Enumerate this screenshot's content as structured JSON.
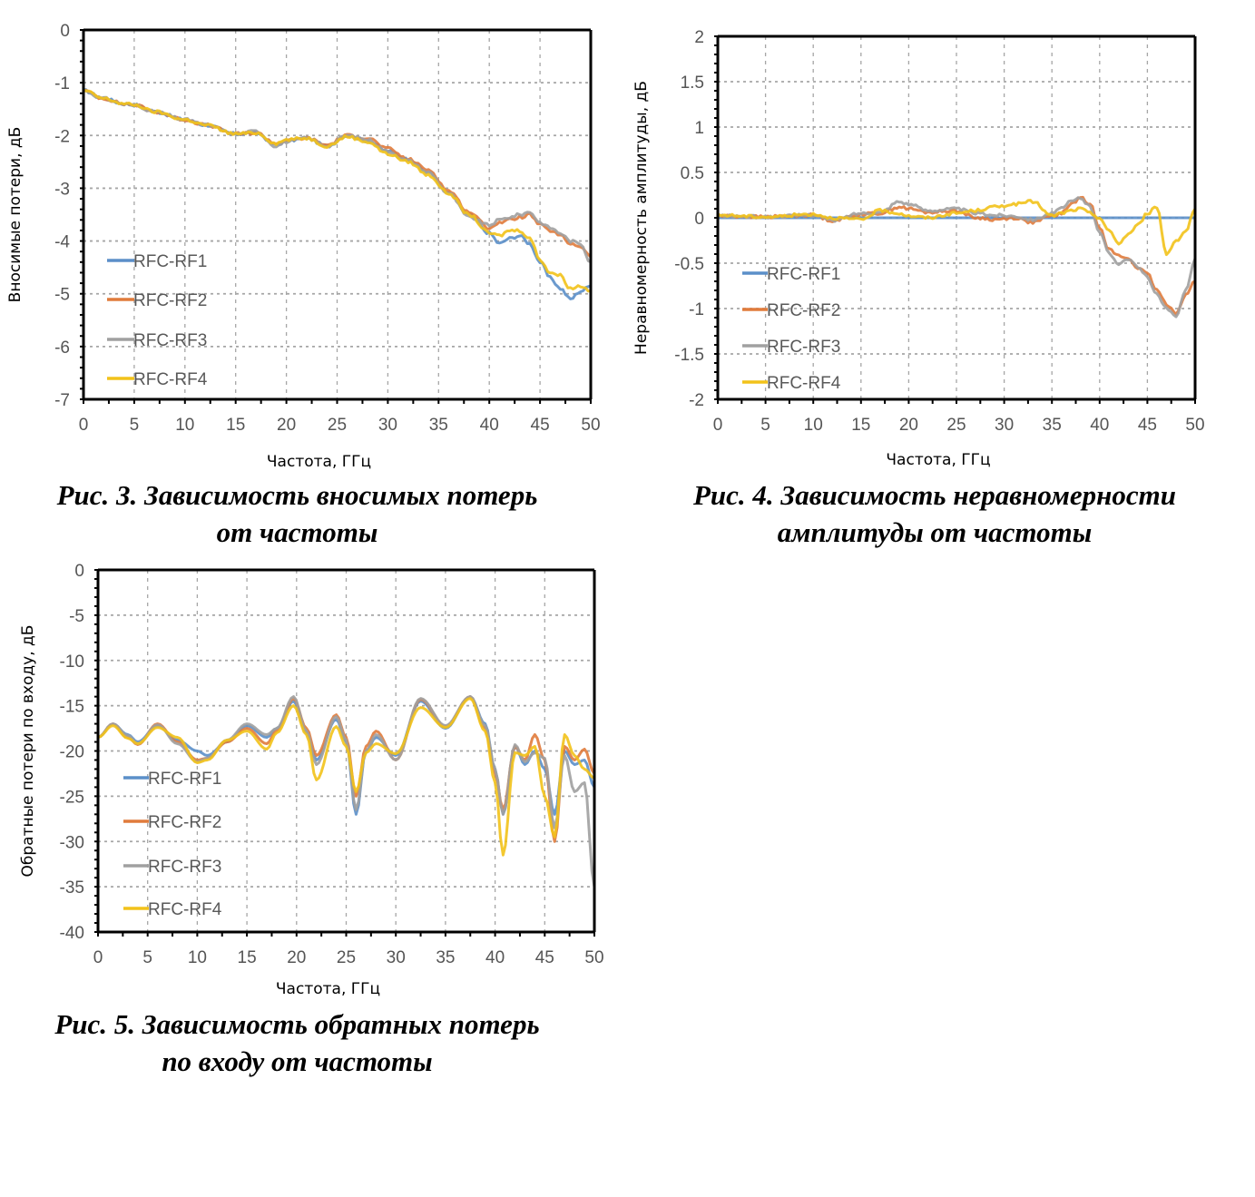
{
  "colors": {
    "RFC-RF1": "#5b8fc9",
    "RFC-RF2": "#e07b3c",
    "RFC-RF3": "#a0a0a0",
    "RFC-RF4": "#f2c21a",
    "grid": "#a6a6a6",
    "axis": "#000000"
  },
  "captions": {
    "fig3_line1": "Рис. 3. Зависимость вносимых потерь",
    "fig3_line2": "от частоты",
    "fig4_line1": "Рис. 4. Зависимость неравномерности",
    "fig4_line2": "амплитуды от частоты",
    "fig5_line1": "Рис. 5. Зависимость обратных потерь",
    "fig5_line2": "по входу от частоты"
  },
  "chart_data": [
    {
      "id": "fig3",
      "type": "line",
      "title": "",
      "xlabel": "Частота, ГГц",
      "ylabel": "Вносимые потери, дБ",
      "xlim": [
        0,
        50
      ],
      "ylim": [
        -7,
        0
      ],
      "xticks": [
        0,
        5,
        10,
        15,
        20,
        25,
        30,
        35,
        40,
        45,
        50
      ],
      "yticks": [
        0,
        -1,
        -2,
        -3,
        -4,
        -5,
        -6,
        -7
      ],
      "ytick_labels": [
        "0",
        "-1",
        "-2",
        "-3",
        "-4",
        "-5",
        "-6",
        "-7"
      ],
      "grid": true,
      "legend": "bottom-left",
      "x": [
        0,
        2,
        4,
        5,
        7,
        10,
        12,
        15,
        17,
        19,
        20,
        22,
        24,
        26,
        28,
        30,
        32,
        34,
        36,
        38,
        40,
        41,
        42,
        43,
        44,
        45,
        46,
        47,
        48,
        49,
        50
      ],
      "series": [
        {
          "name": "RFC-RF1",
          "values": [
            -1.15,
            -1.3,
            -1.4,
            -1.42,
            -1.55,
            -1.7,
            -1.8,
            -1.97,
            -1.95,
            -2.18,
            -2.1,
            -2.05,
            -2.2,
            -2.0,
            -2.1,
            -2.3,
            -2.45,
            -2.7,
            -3.1,
            -3.5,
            -3.85,
            -4.05,
            -3.95,
            -3.9,
            -4.05,
            -4.4,
            -4.7,
            -4.9,
            -5.1,
            -4.95,
            -4.85
          ]
        },
        {
          "name": "RFC-RF2",
          "values": [
            -1.15,
            -1.3,
            -1.4,
            -1.42,
            -1.55,
            -1.7,
            -1.8,
            -1.97,
            -1.95,
            -2.15,
            -2.1,
            -2.05,
            -2.18,
            -2.0,
            -2.05,
            -2.25,
            -2.45,
            -2.65,
            -3.05,
            -3.45,
            -3.75,
            -3.65,
            -3.6,
            -3.55,
            -3.5,
            -3.7,
            -3.8,
            -3.9,
            -4.05,
            -4.1,
            -4.3
          ]
        },
        {
          "name": "RFC-RF3",
          "values": [
            -1.15,
            -1.3,
            -1.4,
            -1.42,
            -1.55,
            -1.7,
            -1.8,
            -1.97,
            -1.92,
            -2.2,
            -2.12,
            -2.05,
            -2.2,
            -2.0,
            -2.08,
            -2.3,
            -2.48,
            -2.7,
            -3.1,
            -3.55,
            -3.7,
            -3.6,
            -3.55,
            -3.5,
            -3.45,
            -3.65,
            -3.75,
            -3.85,
            -4.0,
            -4.05,
            -4.4
          ]
        },
        {
          "name": "RFC-RF4",
          "values": [
            -1.15,
            -1.3,
            -1.4,
            -1.42,
            -1.55,
            -1.7,
            -1.8,
            -1.97,
            -1.95,
            -2.15,
            -2.08,
            -2.05,
            -2.2,
            -2.02,
            -2.12,
            -2.35,
            -2.5,
            -2.75,
            -3.1,
            -3.5,
            -3.85,
            -3.9,
            -3.8,
            -3.8,
            -3.95,
            -4.35,
            -4.6,
            -4.65,
            -4.9,
            -4.85,
            -4.95
          ]
        }
      ]
    },
    {
      "id": "fig4",
      "type": "line",
      "title": "",
      "xlabel": "Частота, ГГц",
      "ylabel": "Неравномерность амплитуды, дБ",
      "xlim": [
        0,
        50
      ],
      "ylim": [
        -2,
        2
      ],
      "xticks": [
        0,
        5,
        10,
        15,
        20,
        25,
        30,
        35,
        40,
        45,
        50
      ],
      "yticks": [
        2,
        1.5,
        1,
        0.5,
        0,
        -0.5,
        -1,
        -1.5,
        -2
      ],
      "ytick_labels": [
        "2",
        "1.5",
        "1",
        "0.5",
        "0",
        "-0.5",
        "-1",
        "-1.5",
        "-2"
      ],
      "grid": true,
      "legend": "bottom-left",
      "x": [
        0,
        5,
        10,
        12,
        15,
        17,
        19,
        20,
        22,
        25,
        27,
        29,
        31,
        33,
        35,
        36,
        37,
        38,
        39,
        40,
        41,
        42,
        43,
        44,
        45,
        46,
        47,
        48,
        49,
        50
      ],
      "series": [
        {
          "name": "RFC-RF1",
          "values": [
            0,
            0,
            0,
            0,
            0,
            0,
            0,
            0,
            0,
            0,
            0,
            0,
            0,
            0,
            0,
            0,
            0,
            0,
            0,
            0,
            0,
            0,
            0,
            0,
            0,
            0,
            0,
            0,
            0,
            0
          ]
        },
        {
          "name": "RFC-RF2",
          "values": [
            0.02,
            0.01,
            0.03,
            -0.03,
            0.04,
            0.05,
            0.12,
            0.1,
            0.06,
            0.08,
            0.0,
            -0.02,
            0.0,
            -0.05,
            0.02,
            0.05,
            0.15,
            0.22,
            0.15,
            -0.1,
            -0.35,
            -0.42,
            -0.45,
            -0.55,
            -0.62,
            -0.8,
            -0.95,
            -1.05,
            -0.85,
            -0.7
          ]
        },
        {
          "name": "RFC-RF3",
          "values": [
            0.02,
            0.01,
            0.03,
            -0.03,
            0.05,
            0.06,
            0.18,
            0.15,
            0.08,
            0.1,
            0.05,
            0.03,
            0.02,
            -0.02,
            0.05,
            0.1,
            0.18,
            0.22,
            0.12,
            -0.15,
            -0.4,
            -0.5,
            -0.45,
            -0.55,
            -0.65,
            -0.85,
            -1.0,
            -1.1,
            -0.8,
            -0.45
          ]
        },
        {
          "name": "RFC-RF4",
          "values": [
            0.03,
            0.01,
            0.04,
            0.0,
            -0.02,
            0.08,
            0.05,
            0.02,
            0.0,
            0.05,
            0.08,
            0.12,
            0.15,
            0.18,
            0.02,
            0.05,
            0.08,
            0.1,
            0.05,
            0.0,
            -0.15,
            -0.28,
            -0.18,
            -0.08,
            0.05,
            0.12,
            -0.4,
            -0.25,
            -0.15,
            0.1
          ]
        }
      ]
    },
    {
      "id": "fig5",
      "type": "line",
      "title": "",
      "xlabel": "Частота, ГГц",
      "ylabel": "Обратные потери по входу, дБ",
      "xlim": [
        0,
        50
      ],
      "ylim": [
        -40,
        0
      ],
      "xticks": [
        0,
        5,
        10,
        15,
        20,
        25,
        30,
        35,
        40,
        45,
        50
      ],
      "yticks": [
        0,
        -5,
        -10,
        -15,
        -20,
        -25,
        -30,
        -35,
        -40
      ],
      "ytick_labels": [
        "0",
        "-5",
        "-10",
        "-15",
        "-20",
        "-25",
        "-30",
        "-35",
        "-40"
      ],
      "grid": true,
      "legend": "bottom-left",
      "x": [
        0,
        1.5,
        3,
        4,
        6,
        8,
        10,
        11,
        13,
        15,
        17,
        18,
        19.7,
        21,
        22,
        24,
        25,
        26,
        27,
        28,
        30,
        32.5,
        35,
        37.5,
        39,
        40,
        40.8,
        42,
        43,
        44,
        45,
        46,
        47,
        48,
        49,
        50
      ],
      "series": [
        {
          "name": "RFC-RF1",
          "values": [
            -18.5,
            -17,
            -18.2,
            -19,
            -17.2,
            -18.8,
            -20,
            -20.5,
            -19,
            -17.2,
            -18.5,
            -17.5,
            -14.5,
            -18,
            -21,
            -16.5,
            -19,
            -27,
            -20,
            -18.5,
            -20.5,
            -14.5,
            -17.5,
            -14,
            -17,
            -22,
            -27,
            -19.5,
            -21.5,
            -20,
            -22,
            -27,
            -20,
            -21.5,
            -21,
            -24
          ]
        },
        {
          "name": "RFC-RF2",
          "values": [
            -18.5,
            -17,
            -18.5,
            -19.3,
            -17,
            -19,
            -21,
            -20.8,
            -19,
            -17.5,
            -19.2,
            -17.8,
            -14.2,
            -17.5,
            -20.5,
            -16,
            -18.5,
            -25,
            -19.5,
            -17.8,
            -21,
            -14.3,
            -17.3,
            -14,
            -17.5,
            -22.5,
            -26.5,
            -19.5,
            -21,
            -18.2,
            -21,
            -30,
            -19.5,
            -21,
            -19.8,
            -22.5
          ]
        },
        {
          "name": "RFC-RF3",
          "values": [
            -18.5,
            -17,
            -18.3,
            -19.2,
            -17.1,
            -19.2,
            -21.2,
            -20.8,
            -18.8,
            -17,
            -18.2,
            -17.5,
            -14,
            -17.8,
            -21.5,
            -16.2,
            -18.8,
            -26.5,
            -20,
            -18.2,
            -21,
            -14.2,
            -17.2,
            -14,
            -17.2,
            -22,
            -27,
            -19.3,
            -21.2,
            -20.2,
            -20.8,
            -28.5,
            -20.5,
            -24.5,
            -23.5,
            -35
          ]
        },
        {
          "name": "RFC-RF4",
          "values": [
            -18.5,
            -17.2,
            -18.6,
            -19.2,
            -17.4,
            -18.5,
            -21.3,
            -21,
            -18.8,
            -17.8,
            -19.8,
            -18,
            -15,
            -18.2,
            -23.2,
            -17.3,
            -19.5,
            -24.5,
            -20.2,
            -19.2,
            -20.3,
            -15.2,
            -17.4,
            -14.2,
            -17.8,
            -23.5,
            -31.5,
            -20.2,
            -20.5,
            -19.5,
            -25,
            -29.5,
            -18.2,
            -20.5,
            -22,
            -23
          ]
        }
      ]
    }
  ]
}
